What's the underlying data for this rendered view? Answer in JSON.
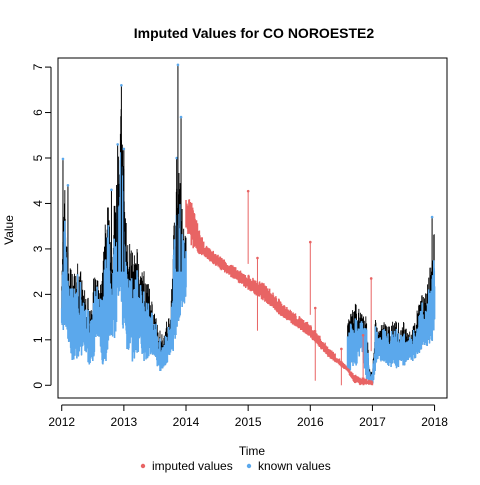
{
  "chart_data": {
    "type": "line",
    "title": "Imputed Values for  CO NOROESTE2",
    "xlabel": "Time",
    "ylabel": "Value",
    "xlim": [
      2011.94,
      2018.2
    ],
    "ylim": [
      -0.28,
      7.2
    ],
    "x_ticks": [
      "2012",
      "2013",
      "2014",
      "2015",
      "2016",
      "2017",
      "2018"
    ],
    "y_ticks": [
      "0",
      "1",
      "2",
      "3",
      "4",
      "5",
      "6",
      "7"
    ],
    "colors": {
      "known": "#5ba8ec",
      "imputed": "#e86464",
      "known_point_outline": "#000000"
    },
    "legend": {
      "placement": "bottom-outside",
      "items": [
        {
          "label": "imputed values",
          "color": "#e86464"
        },
        {
          "label": "known values",
          "color": "#5ba8ec"
        }
      ]
    },
    "series": [
      {
        "name": "known values",
        "segment": "2012-2014",
        "x": [
          2012.0,
          2012.05,
          2012.1,
          2012.15,
          2012.2,
          2012.25,
          2012.3,
          2012.35,
          2012.4,
          2012.45,
          2012.5,
          2012.55,
          2012.6,
          2012.65,
          2012.7,
          2012.75,
          2012.8,
          2012.85,
          2012.9,
          2012.95,
          2013.0,
          2013.05,
          2013.1,
          2013.15,
          2013.2,
          2013.25,
          2013.3,
          2013.35,
          2013.4,
          2013.45,
          2013.5,
          2013.55,
          2013.6,
          2013.65,
          2013.7,
          2013.75,
          2013.8,
          2013.85,
          2013.9,
          2013.95,
          2014.0
        ],
        "upper": [
          3.3,
          4.4,
          3.0,
          2.6,
          2.5,
          2.8,
          2.6,
          2.2,
          2.0,
          1.9,
          2.3,
          2.5,
          2.2,
          2.4,
          3.6,
          4.2,
          2.6,
          4.2,
          5.5,
          6.3,
          5.0,
          3.2,
          3.3,
          2.8,
          3.1,
          2.8,
          2.6,
          2.5,
          2.2,
          1.9,
          1.6,
          1.3,
          1.2,
          1.2,
          1.5,
          1.5,
          3.6,
          4.4,
          4.8,
          3.7,
          3.3
        ],
        "lower": [
          0.8,
          1.3,
          1.0,
          0.5,
          0.5,
          0.6,
          0.4,
          0.8,
          0.6,
          0.4,
          0.5,
          0.9,
          1.0,
          0.5,
          0.3,
          0.9,
          1.1,
          0.9,
          1.5,
          1.6,
          1.1,
          0.7,
          0.8,
          0.4,
          0.4,
          0.9,
          0.6,
          0.4,
          0.6,
          0.7,
          0.6,
          0.3,
          0.3,
          0.4,
          0.5,
          0.6,
          0.7,
          1.2,
          1.5,
          1.6,
          1.9
        ]
      },
      {
        "name": "known values",
        "segment": "2016.6-2018",
        "x": [
          2016.6,
          2016.65,
          2016.7,
          2016.75,
          2016.8,
          2016.85,
          2016.9,
          2016.95,
          2017.0,
          2017.05,
          2017.1,
          2017.15,
          2017.2,
          2017.25,
          2017.3,
          2017.35,
          2017.4,
          2017.45,
          2017.5,
          2017.55,
          2017.6,
          2017.65,
          2017.7,
          2017.75,
          2017.8,
          2017.85,
          2017.9,
          2017.95,
          2018.0
        ],
        "upper": [
          1.4,
          1.6,
          1.8,
          1.8,
          1.7,
          1.7,
          1.6,
          0.4,
          0.3,
          1.5,
          1.2,
          1.4,
          1.4,
          1.3,
          1.4,
          1.4,
          1.5,
          1.2,
          1.4,
          1.3,
          1.2,
          1.3,
          1.5,
          1.9,
          2.0,
          2.1,
          2.4,
          2.8,
          3.6
        ],
        "lower": [
          0.3,
          0.3,
          0.4,
          0.4,
          0.7,
          0.6,
          0.1,
          0.0,
          0.0,
          0.3,
          0.6,
          0.5,
          0.5,
          0.4,
          0.4,
          0.5,
          0.3,
          0.5,
          0.4,
          0.5,
          0.6,
          0.5,
          0.6,
          0.7,
          0.8,
          0.8,
          0.8,
          0.9,
          0.9
        ]
      },
      {
        "name": "imputed values",
        "x": [
          2014.0,
          2014.1,
          2014.2,
          2014.3,
          2014.4,
          2014.5,
          2014.6,
          2014.7,
          2014.8,
          2014.9,
          2015.0,
          2015.1,
          2015.2,
          2015.3,
          2015.4,
          2015.5,
          2015.6,
          2015.7,
          2015.8,
          2015.9,
          2016.0,
          2016.1,
          2016.2,
          2016.3,
          2016.4,
          2016.5,
          2016.6,
          2016.7,
          2016.8,
          2016.9,
          2017.0
        ],
        "upper": [
          4.3,
          4.0,
          3.5,
          3.1,
          3.0,
          2.9,
          2.8,
          2.7,
          2.6,
          2.5,
          2.45,
          2.35,
          2.3,
          2.2,
          2.05,
          1.9,
          1.75,
          1.65,
          1.55,
          1.45,
          1.35,
          1.2,
          1.0,
          0.85,
          0.7,
          0.55,
          0.4,
          0.25,
          0.2,
          0.15,
          0.1
        ],
        "lower": [
          3.4,
          3.0,
          2.9,
          2.8,
          2.7,
          2.6,
          2.5,
          2.4,
          2.3,
          2.2,
          2.1,
          2.0,
          1.9,
          1.8,
          1.7,
          1.55,
          1.45,
          1.35,
          1.25,
          1.15,
          1.05,
          0.9,
          0.75,
          0.6,
          0.5,
          0.4,
          0.3,
          0.05,
          0.0,
          0.0,
          0.0
        ]
      }
    ],
    "known_spikes": [
      {
        "x": 2012.02,
        "y": 4.98
      },
      {
        "x": 2012.1,
        "y": 4.4
      },
      {
        "x": 2012.8,
        "y": 4.3
      },
      {
        "x": 2012.9,
        "y": 5.3
      },
      {
        "x": 2012.96,
        "y": 6.6
      },
      {
        "x": 2013.0,
        "y": 5.2
      },
      {
        "x": 2013.85,
        "y": 5.0
      },
      {
        "x": 2013.87,
        "y": 7.05
      },
      {
        "x": 2013.92,
        "y": 5.9
      },
      {
        "x": 2017.96,
        "y": 3.7
      }
    ],
    "imputed_spikes": [
      {
        "x": 2015.0,
        "y": 4.27
      },
      {
        "x": 2015.15,
        "y": 2.8
      },
      {
        "x": 2016.0,
        "y": 3.15
      },
      {
        "x": 2016.08,
        "y": 1.7
      },
      {
        "x": 2016.5,
        "y": 0.8
      },
      {
        "x": 2016.98,
        "y": 2.35
      },
      {
        "x": 2016.85,
        "y": 1.1
      }
    ]
  }
}
